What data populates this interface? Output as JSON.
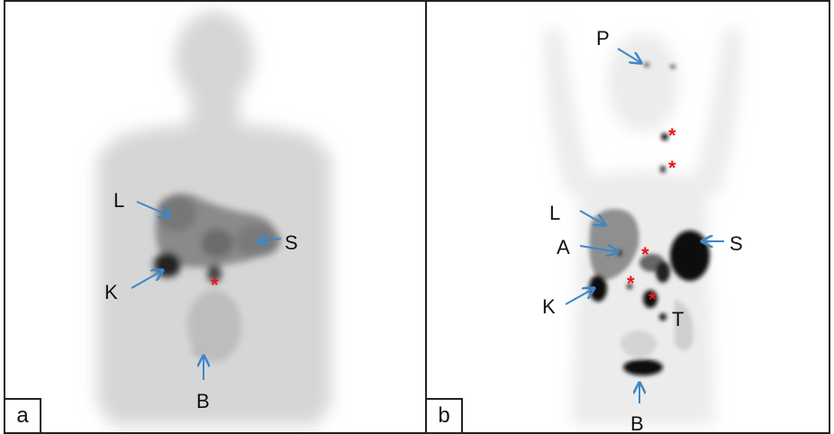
{
  "panels": [
    {
      "id": "a",
      "letter": "a",
      "labels": {
        "L": "L",
        "S": "S",
        "K": "K",
        "B": "B"
      },
      "asterisks": [
        "*"
      ]
    },
    {
      "id": "b",
      "letter": "b",
      "labels": {
        "P": "P",
        "L": "L",
        "A": "A",
        "S": "S",
        "K": "K",
        "T": "T",
        "B": "B"
      },
      "asterisks": [
        "*",
        "*",
        "*",
        "*",
        "*"
      ]
    }
  ],
  "colors": {
    "arrow": "#3d87c8",
    "asterisk": "#e8141b",
    "border": "#222222"
  }
}
